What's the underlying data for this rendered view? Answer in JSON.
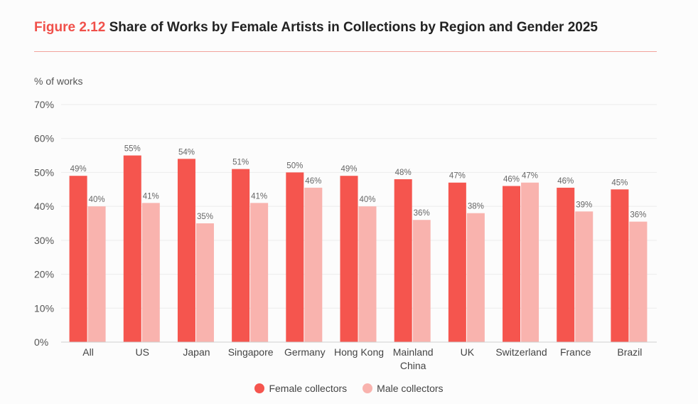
{
  "title": {
    "figure_label": "Figure 2.12",
    "text": "Share of Works by Female Artists in Collections by Region and Gender 2025"
  },
  "colors": {
    "accent": "#f0504a",
    "female": "#f5554e",
    "male": "#f9b3ae",
    "grid": "#ececec"
  },
  "chart_data": {
    "type": "bar",
    "ylabel": "% of works",
    "ylim": [
      0,
      70
    ],
    "yticks": [
      0,
      10,
      20,
      30,
      40,
      50,
      60,
      70
    ],
    "ytick_labels": [
      "0%",
      "10%",
      "20%",
      "30%",
      "40%",
      "50%",
      "60%",
      "70%"
    ],
    "grid": true,
    "legend_position": "bottom-center",
    "categories": [
      "All",
      "US",
      "Japan",
      "Singapore",
      "Germany",
      "Hong Kong",
      "Mainland China",
      "UK",
      "Switzerland",
      "France",
      "Brazil"
    ],
    "series": [
      {
        "name": "Female collectors",
        "values": [
          49,
          55,
          54,
          51,
          50,
          49,
          48,
          47,
          46,
          45.5,
          45
        ],
        "labels": [
          "49%",
          "55%",
          "54%",
          "51%",
          "50%",
          "49%",
          "48%",
          "47%",
          "46%",
          "46%",
          "45%"
        ]
      },
      {
        "name": "Male collectors",
        "values": [
          40,
          41,
          35,
          41,
          45.5,
          40,
          36,
          38,
          47,
          38.5,
          35.5
        ],
        "labels": [
          "40%",
          "41%",
          "35%",
          "41%",
          "46%",
          "40%",
          "36%",
          "38%",
          "47%",
          "39%",
          "36%"
        ]
      }
    ]
  }
}
